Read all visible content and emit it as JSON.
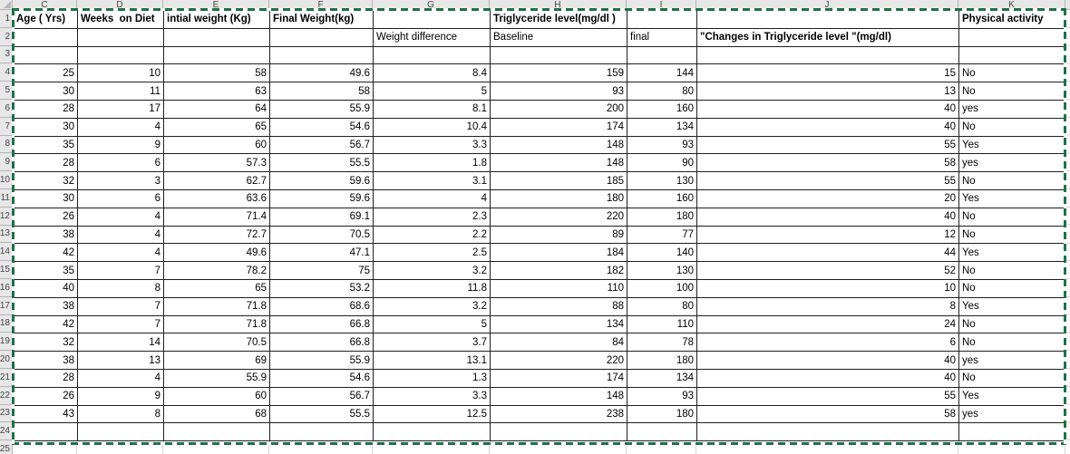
{
  "app": "spreadsheet-worksheet",
  "colors": {
    "ants": "#1E7145",
    "grid": "#1f1f1f",
    "hdrbg": "#e7e7e7",
    "hdrline": "#b4b4b4",
    "hdrtext": "#444444",
    "faint": "#d6d6d6",
    "celltext": "#000000"
  },
  "columns": [
    "C",
    "D",
    "E",
    "F",
    "G",
    "H",
    "I",
    "J",
    "K"
  ],
  "row_numbers": [
    "1",
    "2",
    "3",
    "4",
    "5",
    "6",
    "7",
    "8",
    "9",
    "10",
    "11",
    "12",
    "13",
    "14",
    "15",
    "16",
    "17",
    "18",
    "19",
    "20",
    "21",
    "22",
    "23",
    "24",
    "25"
  ],
  "grid": {
    "rows": [
      {
        "n": 1,
        "bold": true,
        "cells": [
          "Age ( Yrs)",
          "Weeks  on Diet",
          "intial weight (Kg)",
          "Final Weight(kg)",
          "",
          "Triglyceride level(mg/dl )",
          "",
          "",
          "Physical activity"
        ]
      },
      {
        "n": 2,
        "bold_cols": [
          7
        ],
        "cells": [
          "",
          "",
          "",
          "",
          "Weight difference",
          "Baseline",
          "final",
          "\"Changes in Triglyceride level \"(mg/dl)",
          ""
        ]
      },
      {
        "n": 3,
        "cells": [
          "",
          "",
          "",
          "",
          "",
          "",
          "",
          "",
          ""
        ]
      },
      {
        "n": 4,
        "cells": [
          25,
          10,
          58,
          49.6,
          8.4,
          159,
          144,
          15,
          "No"
        ]
      },
      {
        "n": 5,
        "cells": [
          30,
          11,
          63,
          58,
          5,
          93,
          80,
          13,
          "No"
        ]
      },
      {
        "n": 6,
        "cells": [
          28,
          17,
          64,
          55.9,
          8.1,
          200,
          160,
          40,
          "yes"
        ]
      },
      {
        "n": 7,
        "cells": [
          30,
          4,
          65,
          54.6,
          10.4,
          174,
          134,
          40,
          "No"
        ]
      },
      {
        "n": 8,
        "cells": [
          35,
          9,
          60,
          56.7,
          3.3,
          148,
          93,
          55,
          "Yes"
        ]
      },
      {
        "n": 9,
        "cells": [
          28,
          6,
          57.3,
          55.5,
          1.8,
          148,
          90,
          58,
          "yes"
        ]
      },
      {
        "n": 10,
        "cells": [
          32,
          3,
          62.7,
          59.6,
          3.1,
          185,
          130,
          55,
          "No"
        ]
      },
      {
        "n": 11,
        "cells": [
          30,
          6,
          63.6,
          59.6,
          4,
          180,
          160,
          20,
          "Yes"
        ]
      },
      {
        "n": 12,
        "cells": [
          26,
          4,
          71.4,
          69.1,
          2.3,
          220,
          180,
          40,
          "No"
        ]
      },
      {
        "n": 13,
        "cells": [
          38,
          4,
          72.7,
          70.5,
          2.2,
          89,
          77,
          12,
          "No"
        ]
      },
      {
        "n": 14,
        "cells": [
          42,
          4,
          49.6,
          47.1,
          2.5,
          184,
          140,
          44,
          "Yes"
        ]
      },
      {
        "n": 15,
        "cells": [
          35,
          7,
          78.2,
          75,
          3.2,
          182,
          130,
          52,
          "No"
        ]
      },
      {
        "n": 16,
        "cells": [
          40,
          8,
          65,
          53.2,
          11.8,
          110,
          100,
          10,
          "No"
        ]
      },
      {
        "n": 17,
        "cells": [
          38,
          7,
          71.8,
          68.6,
          3.2,
          88,
          80,
          8,
          "Yes"
        ]
      },
      {
        "n": 18,
        "cells": [
          42,
          7,
          71.8,
          66.8,
          5,
          134,
          110,
          24,
          "No"
        ]
      },
      {
        "n": 19,
        "cells": [
          32,
          14,
          70.5,
          66.8,
          3.7,
          84,
          78,
          6,
          "No"
        ]
      },
      {
        "n": 20,
        "cells": [
          38,
          13,
          69,
          55.9,
          13.1,
          220,
          180,
          40,
          "yes"
        ]
      },
      {
        "n": 21,
        "cells": [
          28,
          4,
          55.9,
          54.6,
          1.3,
          174,
          134,
          40,
          "No"
        ]
      },
      {
        "n": 22,
        "cells": [
          26,
          9,
          60,
          56.7,
          3.3,
          148,
          93,
          55,
          "Yes"
        ]
      },
      {
        "n": 23,
        "cells": [
          43,
          8,
          68,
          55.5,
          12.5,
          238,
          180,
          58,
          "yes"
        ]
      },
      {
        "n": 24,
        "cells": [
          "",
          "",
          "",
          "",
          "",
          "",
          "",
          "",
          ""
        ]
      }
    ]
  }
}
